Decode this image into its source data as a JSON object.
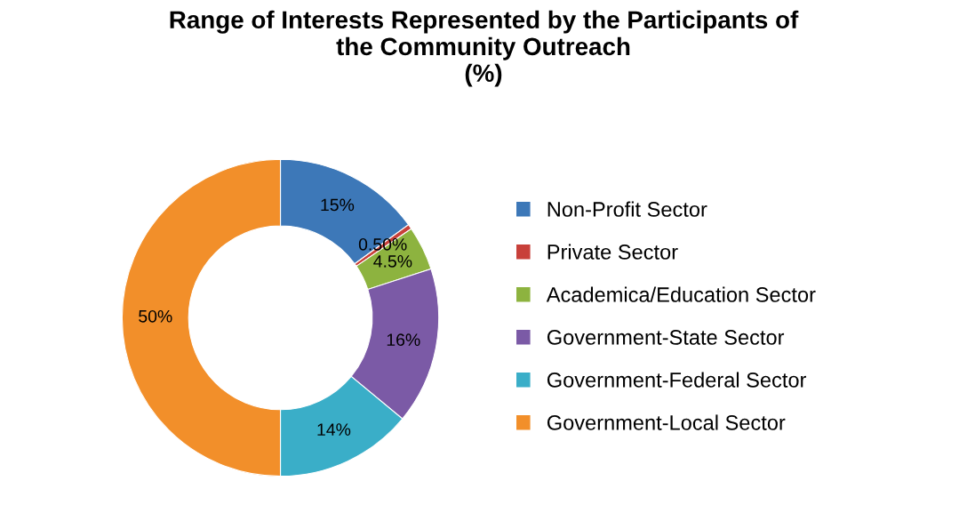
{
  "chart_data": {
    "type": "donut",
    "title": "Range of Interests Represented by the Participants of\nthe Community Outreach\n(%)",
    "categories": [
      "Non-Profit Sector",
      "Private Sector",
      "Academica/Education Sector",
      "Government-State Sector",
      "Government-Federal Sector",
      "Government-Local Sector"
    ],
    "values": [
      15,
      0.5,
      4.5,
      16,
      14,
      50
    ],
    "value_labels": [
      "15%",
      "0.50%",
      "4.5%",
      "16%",
      "14%",
      "50%"
    ],
    "colors": [
      "#3d78b8",
      "#c8403a",
      "#8db33f",
      "#7b5aa6",
      "#3aaec8",
      "#f28f2a"
    ],
    "legend": "right"
  }
}
